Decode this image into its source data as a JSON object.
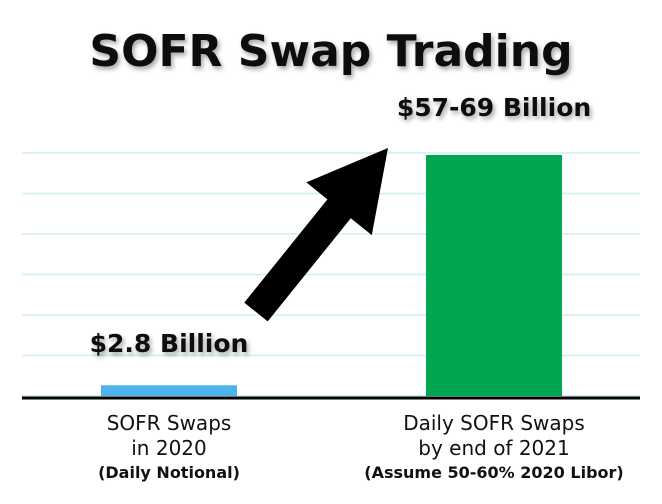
{
  "chart_data": {
    "type": "bar",
    "title": "SOFR Swap Trading",
    "categories": [
      {
        "line1": "SOFR Swaps",
        "line2": "in 2020",
        "note": "(Daily Notional)"
      },
      {
        "line1": "Daily SOFR Swaps",
        "line2": "by end of 2021",
        "note": "(Assume 50-60% 2020 Libor)"
      }
    ],
    "values": [
      2.8,
      63
    ],
    "value_labels": [
      "$2.8 Billion",
      "$57-69 Billion"
    ],
    "unit": "Billion USD",
    "ylim": [
      0,
      69
    ],
    "grid": true,
    "bar_colors": [
      "#4db3ec",
      "#00a650"
    ],
    "gridline_color": "#cfeef3",
    "arrow": {
      "from_value": 2.8,
      "to_value": 63,
      "color": "#000000"
    }
  }
}
